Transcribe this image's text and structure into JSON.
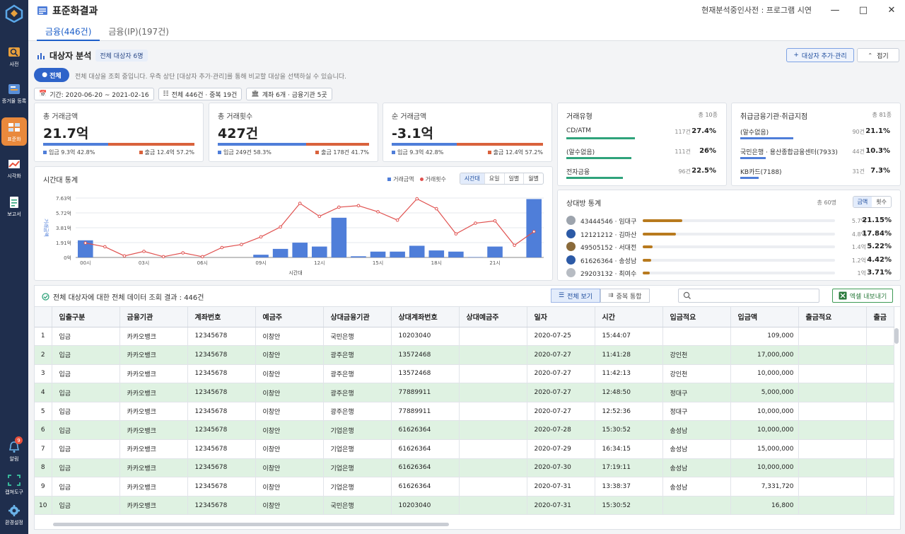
{
  "sidebar": {
    "items": [
      {
        "label": "사전",
        "icon": "search-dictionary-icon"
      },
      {
        "label": "증거물 등록",
        "icon": "evidence-register-icon"
      },
      {
        "label": "표준화",
        "icon": "standardize-icon",
        "active": true
      },
      {
        "label": "시각화",
        "icon": "visualize-icon"
      },
      {
        "label": "보고서",
        "icon": "report-icon"
      }
    ],
    "bottom": [
      {
        "label": "알림",
        "icon": "bell-icon",
        "badge": "9"
      },
      {
        "label": "캡쳐도구",
        "icon": "capture-icon"
      },
      {
        "label": "환경설정",
        "icon": "gear-icon"
      }
    ]
  },
  "header": {
    "title": "표준화결과",
    "dict_info": "현재분석중인사전 : 프로그램 시연",
    "tabs": [
      {
        "label": "금융(446건)",
        "active": true
      },
      {
        "label": "금융(IP)(197건)",
        "active": false
      }
    ]
  },
  "section": {
    "title": "대상자 분석",
    "chip": "전체 대상자 6명",
    "add_button": "대상자 추가·관리",
    "fold_button": "접기",
    "all_button": "전체",
    "help": "전체 대상을 조회 중입니다. 우측 상단 [대상자 추가·관리]를 통해 비교할 대상을 선택하실 수 있습니다.",
    "filters": [
      "기간: 2020-06-20 ~ 2021-02-16",
      "전체 446건 · 중복 19건",
      "계좌 6개 · 금융기관 5곳"
    ]
  },
  "kpis": [
    {
      "label": "총 거래금액",
      "value": "21.7억",
      "in_text": "입금 9.3억 42.8%",
      "out_text": "출금 12.4억 57.2%",
      "in_pct": 42.8
    },
    {
      "label": "총 거래횟수",
      "value": "427건",
      "in_text": "입금 249건 58.3%",
      "out_text": "출금 178건 41.7%",
      "in_pct": 58.3
    },
    {
      "label": "순 거래금액",
      "value": "-3.1억",
      "in_text": "입금 9.3억 42.8%",
      "out_text": "출금 12.4억 57.2%",
      "in_pct": 42.8
    }
  ],
  "tx_type": {
    "title": "거래유형",
    "total": "총 10종",
    "rows": [
      {
        "name": "CD/ATM",
        "count": "117건",
        "pct": "27.4%",
        "share": 27.4
      },
      {
        "name": "(알수없음)",
        "count": "111건",
        "pct": "26%",
        "share": 26
      },
      {
        "name": "전자금융",
        "count": "96건",
        "pct": "22.5%",
        "share": 22.5
      }
    ]
  },
  "institutions": {
    "title": "취급금융기관·취급지점",
    "total": "총 81종",
    "rows": [
      {
        "name": "(알수없음)",
        "count": "90건",
        "pct": "21.1%",
        "share": 21.1
      },
      {
        "name": "국민은행 · 용산종합금융센터(7933)",
        "count": "44건",
        "pct": "10.3%",
        "share": 10.3
      },
      {
        "name": "KB카드(7188)",
        "count": "31건",
        "pct": "7.3%",
        "share": 7.3
      }
    ]
  },
  "time_chart": {
    "title": "시간대 통계",
    "legend": [
      "거래금액",
      "거래횟수"
    ],
    "segments": [
      {
        "label": "시간대",
        "active": true
      },
      {
        "label": "요일",
        "active": false
      },
      {
        "label": "일별",
        "active": false
      },
      {
        "label": "월별",
        "active": false
      }
    ]
  },
  "chart_data": {
    "type": "bar",
    "xlabel": "시간대",
    "ylabel": "거래금액",
    "y_ticks": [
      "0억",
      "1.91억",
      "3.81억",
      "5.72억",
      "7.63억"
    ],
    "x_ticks": [
      "00시",
      "03시",
      "06시",
      "09시",
      "12시",
      "15시",
      "18시",
      "21시"
    ],
    "ylim": [
      0,
      7.63
    ],
    "categories": [
      "00시",
      "01시",
      "02시",
      "03시",
      "04시",
      "05시",
      "06시",
      "07시",
      "08시",
      "09시",
      "10시",
      "11시",
      "12시",
      "13시",
      "14시",
      "15시",
      "16시",
      "17시",
      "18시",
      "19시",
      "20시",
      "21시",
      "22시",
      "23시"
    ],
    "series": [
      {
        "name": "거래금액",
        "type": "bar",
        "values": [
          2.2,
          0,
          0,
          0,
          0,
          0,
          0,
          0,
          0,
          0.35,
          1.1,
          1.9,
          1.4,
          5.1,
          0.15,
          0.75,
          0.75,
          1.5,
          0.9,
          0.75,
          0.05,
          1.4,
          0,
          7.5
        ]
      },
      {
        "name": "거래횟수",
        "type": "line",
        "values": [
          19,
          14,
          2,
          8,
          1,
          6,
          1,
          13,
          17,
          27,
          40,
          71,
          54,
          66,
          68,
          60,
          49,
          77,
          64,
          31,
          45,
          48,
          16,
          34
        ],
        "ylim": [
          0,
          78
        ]
      }
    ]
  },
  "counterparty": {
    "title": "상대방 통계",
    "total": "총 60명",
    "segments": [
      {
        "label": "금액",
        "active": true
      },
      {
        "label": "횟수",
        "active": false
      }
    ],
    "rows": [
      {
        "name": "43444546 · 임대구",
        "count": "5.7억",
        "pct": "21.15%",
        "share": 21.15,
        "avatar": "#9da4ad"
      },
      {
        "name": "12121212 · 김마산",
        "count": "4.8억",
        "pct": "17.84%",
        "share": 17.84,
        "avatar": "#2c5aa6"
      },
      {
        "name": "49505152 · 서대전",
        "count": "1.4억",
        "pct": "5.22%",
        "share": 5.22,
        "avatar": "#8a6a3a"
      },
      {
        "name": "61626364 · 송성남",
        "count": "1.2억",
        "pct": "4.42%",
        "share": 4.42,
        "avatar": "#2c5aa6"
      },
      {
        "name": "29203132 · 최여수",
        "count": "1억",
        "pct": "3.71%",
        "share": 3.71,
        "avatar": "#b7bcc3"
      }
    ]
  },
  "table": {
    "message": "전체 대상자에 대한 전체 데이터 조회 결과 : 446건",
    "view_all": "전체 보기",
    "merge_dup": "중복 통합",
    "search_placeholder": "",
    "excel": "엑셀 내보내기",
    "columns": [
      "",
      "입출구분",
      "금융기관",
      "계좌번호",
      "예금주",
      "상대금융기관",
      "상대계좌번호",
      "상대예금주",
      "일자",
      "시간",
      "입금적요",
      "입금액",
      "출금적요",
      "출금"
    ],
    "rows": [
      [
        "1",
        "입금",
        "카카오뱅크",
        "12345678",
        "이창안",
        "국민은행",
        "10203040",
        "",
        "2020-07-25",
        "15:44:07",
        "",
        "109,000",
        "",
        ""
      ],
      [
        "2",
        "입금",
        "카카오뱅크",
        "12345678",
        "이창안",
        "광주은행",
        "13572468",
        "",
        "2020-07-27",
        "11:41:28",
        "강인천",
        "17,000,000",
        "",
        ""
      ],
      [
        "3",
        "입금",
        "카카오뱅크",
        "12345678",
        "이창안",
        "광주은행",
        "13572468",
        "",
        "2020-07-27",
        "11:42:13",
        "강인천",
        "10,000,000",
        "",
        ""
      ],
      [
        "4",
        "입금",
        "카카오뱅크",
        "12345678",
        "이창안",
        "광주은행",
        "77889911",
        "",
        "2020-07-27",
        "12:48:50",
        "정대구",
        "5,000,000",
        "",
        ""
      ],
      [
        "5",
        "입금",
        "카카오뱅크",
        "12345678",
        "이창안",
        "광주은행",
        "77889911",
        "",
        "2020-07-27",
        "12:52:36",
        "정대구",
        "10,000,000",
        "",
        ""
      ],
      [
        "6",
        "입금",
        "카카오뱅크",
        "12345678",
        "이창안",
        "기업은행",
        "61626364",
        "",
        "2020-07-28",
        "15:30:52",
        "송성남",
        "10,000,000",
        "",
        ""
      ],
      [
        "7",
        "입금",
        "카카오뱅크",
        "12345678",
        "이창안",
        "기업은행",
        "61626364",
        "",
        "2020-07-29",
        "16:34:15",
        "송성남",
        "15,000,000",
        "",
        ""
      ],
      [
        "8",
        "입금",
        "카카오뱅크",
        "12345678",
        "이창안",
        "기업은행",
        "61626364",
        "",
        "2020-07-30",
        "17:19:11",
        "송성남",
        "10,000,000",
        "",
        ""
      ],
      [
        "9",
        "입금",
        "카카오뱅크",
        "12345678",
        "이창안",
        "기업은행",
        "61626364",
        "",
        "2020-07-31",
        "13:38:37",
        "송성남",
        "7,331,720",
        "",
        ""
      ],
      [
        "10",
        "입금",
        "카카오뱅크",
        "12345678",
        "이창안",
        "국민은행",
        "10203040",
        "",
        "2020-07-31",
        "15:30:52",
        "",
        "16,800",
        "",
        ""
      ]
    ]
  },
  "colors": {
    "sidebar": "#1f2e4d",
    "accent": "#2e63c9",
    "active_nav": "#e9893c",
    "bar": "#4f7ed9",
    "line": "#e0514f",
    "row_alt": "#dff2e2"
  }
}
